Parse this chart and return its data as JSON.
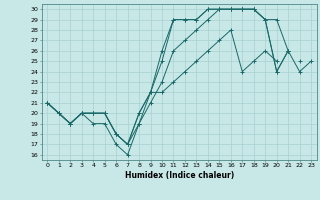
{
  "xlabel": "Humidex (Indice chaleur)",
  "ylabel": "",
  "bg_color": "#c8e8e8",
  "grid_color": "#a8d0d0",
  "line_color": "#1a6868",
  "xlim": [
    -0.5,
    23.5
  ],
  "ylim": [
    15.5,
    30.5
  ],
  "yticks": [
    16,
    17,
    18,
    19,
    20,
    21,
    22,
    23,
    24,
    25,
    26,
    27,
    28,
    29,
    30
  ],
  "xticks": [
    0,
    1,
    2,
    3,
    4,
    5,
    6,
    7,
    8,
    9,
    10,
    11,
    12,
    13,
    14,
    15,
    16,
    17,
    18,
    19,
    20,
    21,
    22,
    23
  ],
  "lines": [
    {
      "x": [
        0,
        1,
        2,
        3,
        4,
        5,
        6,
        7,
        8,
        9,
        10,
        11,
        12,
        13,
        14,
        15,
        16,
        17,
        18,
        19,
        20,
        21,
        22,
        23
      ],
      "y": [
        21,
        20,
        19,
        20,
        19,
        19,
        17,
        16,
        19,
        22,
        26,
        29,
        29,
        29,
        30,
        30,
        30,
        30,
        30,
        29,
        24,
        26,
        null,
        null
      ]
    },
    {
      "x": [
        0,
        1,
        2,
        3,
        4,
        5,
        6,
        7,
        8,
        9,
        10,
        11,
        12,
        13,
        14,
        15,
        16,
        17,
        18,
        19,
        20,
        21,
        22,
        23
      ],
      "y": [
        21,
        20,
        19,
        20,
        20,
        20,
        18,
        17,
        19,
        21,
        23,
        26,
        27,
        28,
        29,
        30,
        30,
        30,
        30,
        29,
        29,
        26,
        24,
        25
      ]
    },
    {
      "x": [
        0,
        1,
        2,
        3,
        4,
        5,
        6,
        7,
        8,
        9,
        10,
        11,
        12,
        13,
        14,
        15,
        16,
        17,
        18,
        19,
        20,
        21,
        22,
        23
      ],
      "y": [
        21,
        20,
        19,
        20,
        20,
        20,
        18,
        17,
        20,
        22,
        25,
        29,
        29,
        29,
        30,
        30,
        30,
        30,
        30,
        29,
        24,
        26,
        null,
        null
      ]
    },
    {
      "x": [
        0,
        1,
        2,
        3,
        4,
        5,
        6,
        7,
        8,
        9,
        10,
        11,
        12,
        13,
        14,
        15,
        16,
        17,
        18,
        19,
        20,
        21,
        22,
        23
      ],
      "y": [
        21,
        20,
        19,
        20,
        20,
        20,
        18,
        17,
        20,
        22,
        22,
        23,
        24,
        25,
        26,
        27,
        28,
        24,
        25,
        26,
        25,
        null,
        25,
        null
      ]
    }
  ]
}
